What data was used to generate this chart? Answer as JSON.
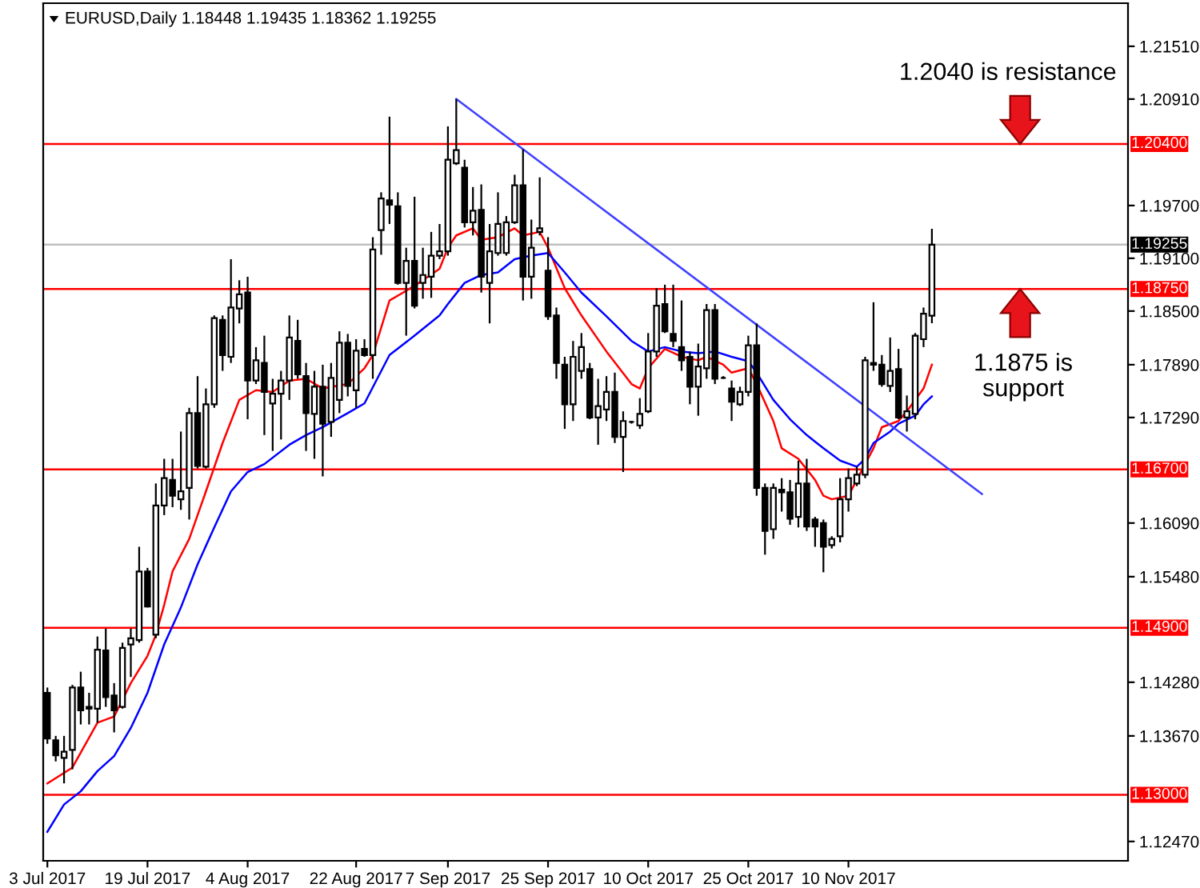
{
  "chart_data": {
    "type": "candlestick",
    "title": "EURUSD,Daily 1.18448 1.19435 1.18362 1.19255",
    "categories": [
      "3 Jul 2017",
      null,
      null,
      null,
      null,
      null,
      null,
      null,
      null,
      null,
      null,
      null,
      "19 Jul 2017",
      null,
      null,
      null,
      null,
      null,
      null,
      null,
      null,
      null,
      null,
      null,
      "4 Aug 2017",
      null,
      null,
      null,
      null,
      null,
      null,
      null,
      null,
      null,
      null,
      null,
      null,
      "22 Aug 2017",
      null,
      null,
      null,
      null,
      null,
      null,
      null,
      null,
      null,
      null,
      "7 Sep 2017",
      null,
      null,
      null,
      null,
      null,
      null,
      null,
      null,
      null,
      null,
      null,
      "25 Sep 2017",
      null,
      null,
      null,
      null,
      null,
      null,
      null,
      null,
      null,
      null,
      null,
      "10 Oct 2017",
      null,
      null,
      null,
      null,
      null,
      null,
      null,
      null,
      null,
      null,
      null,
      "25 Oct 2017",
      null,
      null,
      null,
      null,
      null,
      null,
      null,
      null,
      null,
      null,
      null,
      "10 Nov 2017",
      null,
      null,
      null,
      null,
      null,
      null,
      null,
      null,
      null,
      null,
      null,
      null,
      null,
      null,
      null,
      null,
      null,
      null,
      null,
      null,
      null,
      null,
      null,
      null,
      null,
      null,
      null,
      null,
      null,
      null,
      null,
      null,
      null
    ],
    "ohlc": [
      [
        1.1416,
        1.1422,
        1.1358,
        1.1364
      ],
      [
        1.1362,
        1.1367,
        1.1338,
        1.1345
      ],
      [
        1.1342,
        1.1367,
        1.1313,
        1.1349
      ],
      [
        1.1351,
        1.1425,
        1.1329,
        1.1422
      ],
      [
        1.1422,
        1.144,
        1.138,
        1.1396
      ],
      [
        1.1398,
        1.1416,
        1.138,
        1.14
      ],
      [
        1.1398,
        1.148,
        1.1382,
        1.1465
      ],
      [
        1.1464,
        1.1489,
        1.14,
        1.1411
      ],
      [
        1.1413,
        1.1427,
        1.1371,
        1.1396
      ],
      [
        1.14,
        1.1473,
        1.1398,
        1.1467
      ],
      [
        1.1471,
        1.1489,
        1.1434,
        1.1478
      ],
      [
        1.1476,
        1.1582,
        1.1473,
        1.1554
      ],
      [
        1.1554,
        1.1558,
        1.1513,
        1.1514
      ],
      [
        1.1482,
        1.1654,
        1.1478,
        1.1629
      ],
      [
        1.1629,
        1.1682,
        1.1618,
        1.166
      ],
      [
        1.1658,
        1.1682,
        1.1627,
        1.164
      ],
      [
        1.1636,
        1.1713,
        1.1624,
        1.1645
      ],
      [
        1.1649,
        1.174,
        1.1613,
        1.1734
      ],
      [
        1.1734,
        1.1776,
        1.1671,
        1.1674
      ],
      [
        1.1673,
        1.1762,
        1.1671,
        1.1744
      ],
      [
        1.1744,
        1.1845,
        1.174,
        1.1842
      ],
      [
        1.184,
        1.1845,
        1.1782,
        1.18
      ],
      [
        1.1798,
        1.1909,
        1.1791,
        1.1854
      ],
      [
        1.1853,
        1.1885,
        1.1836,
        1.1869
      ],
      [
        1.1871,
        1.1889,
        1.1727,
        1.1771
      ],
      [
        1.1771,
        1.1809,
        1.1767,
        1.1794
      ],
      [
        1.1791,
        1.1822,
        1.1709,
        1.1758
      ],
      [
        1.1745,
        1.1773,
        1.1691,
        1.1756
      ],
      [
        1.1756,
        1.1782,
        1.1704,
        1.1771
      ],
      [
        1.1771,
        1.1845,
        1.1749,
        1.182
      ],
      [
        1.1816,
        1.184,
        1.1773,
        1.1778
      ],
      [
        1.1776,
        1.1791,
        1.1691,
        1.1734
      ],
      [
        1.1733,
        1.1782,
        1.1682,
        1.1764
      ],
      [
        1.1764,
        1.1789,
        1.1662,
        1.1722
      ],
      [
        1.1724,
        1.1791,
        1.1707,
        1.1774
      ],
      [
        1.1749,
        1.1827,
        1.1734,
        1.1814
      ],
      [
        1.1814,
        1.1824,
        1.1753,
        1.1765
      ],
      [
        1.176,
        1.1818,
        1.174,
        1.1805
      ],
      [
        1.1807,
        1.1818,
        1.1798,
        1.18
      ],
      [
        1.18,
        1.1934,
        1.1773,
        1.192
      ],
      [
        1.1942,
        1.1985,
        1.1914,
        1.1978
      ],
      [
        1.1976,
        1.2071,
        1.1949,
        1.1971
      ],
      [
        1.1969,
        1.1985,
        1.188,
        1.1882
      ],
      [
        1.1882,
        1.1922,
        1.1822,
        1.1907
      ],
      [
        1.1907,
        1.198,
        1.1853,
        1.1856
      ],
      [
        1.1882,
        1.1922,
        1.1864,
        1.1891
      ],
      [
        1.1889,
        1.194,
        1.1865,
        1.1913
      ],
      [
        1.1913,
        1.1949,
        1.1909,
        1.1918
      ],
      [
        1.1918,
        1.206,
        1.1913,
        1.2022
      ],
      [
        1.2018,
        1.2091,
        1.2016,
        1.2033
      ],
      [
        1.2013,
        1.2022,
        1.1945,
        1.1951
      ],
      [
        1.1951,
        1.1991,
        1.1936,
        1.1964
      ],
      [
        1.1965,
        1.1994,
        1.1871,
        1.1889
      ],
      [
        1.1882,
        1.1949,
        1.1836,
        1.1918
      ],
      [
        1.1916,
        1.1985,
        1.1913,
        1.1949
      ],
      [
        1.1916,
        1.1958,
        1.1913,
        1.1951
      ],
      [
        1.1951,
        1.2005,
        1.1949,
        1.1993
      ],
      [
        1.1993,
        1.2034,
        1.1862,
        1.1889
      ],
      [
        1.1889,
        1.1954,
        1.1864,
        1.1922
      ],
      [
        1.194,
        1.2002,
        1.1936,
        1.1944
      ],
      [
        1.1896,
        1.1934,
        1.184,
        1.1844
      ],
      [
        1.1845,
        1.1854,
        1.1773,
        1.1791
      ],
      [
        1.1789,
        1.1798,
        1.1716,
        1.1744
      ],
      [
        1.1744,
        1.1816,
        1.1725,
        1.1798
      ],
      [
        1.1782,
        1.1825,
        1.1773,
        1.1809
      ],
      [
        1.1784,
        1.1791,
        1.1727,
        1.1729
      ],
      [
        1.1729,
        1.1773,
        1.1698,
        1.1742
      ],
      [
        1.1738,
        1.1776,
        1.1725,
        1.1758
      ],
      [
        1.1758,
        1.178,
        1.17,
        1.1707
      ],
      [
        1.1707,
        1.1736,
        1.1667,
        1.1725
      ],
      [
        1.1724,
        1.1725,
        1.1722,
        1.1724
      ],
      [
        1.172,
        1.1751,
        1.1716,
        1.1733
      ],
      [
        1.1736,
        1.1825,
        1.1734,
        1.1804
      ],
      [
        1.1804,
        1.1876,
        1.1798,
        1.1856
      ],
      [
        1.1858,
        1.188,
        1.1825,
        1.1827
      ],
      [
        1.1824,
        1.188,
        1.1809,
        1.1816
      ],
      [
        1.1809,
        1.1862,
        1.1782,
        1.1794
      ],
      [
        1.1798,
        1.1804,
        1.1744,
        1.1764
      ],
      [
        1.1764,
        1.1813,
        1.1731,
        1.1787
      ],
      [
        1.1785,
        1.1858,
        1.1773,
        1.1851
      ],
      [
        1.1851,
        1.1858,
        1.1767,
        1.1773
      ],
      [
        1.1774,
        1.1776,
        1.1773,
        1.1774
      ],
      [
        1.1762,
        1.1771,
        1.1725,
        1.1747
      ],
      [
        1.1744,
        1.1764,
        1.1742,
        1.1758
      ],
      [
        1.1758,
        1.1822,
        1.1753,
        1.1811
      ],
      [
        1.1811,
        1.1836,
        1.164,
        1.1649
      ],
      [
        1.1649,
        1.1654,
        1.1573,
        1.16
      ],
      [
        1.1602,
        1.1654,
        1.1591,
        1.1649
      ],
      [
        1.1647,
        1.166,
        1.1622,
        1.1644
      ],
      [
        1.1644,
        1.1658,
        1.1607,
        1.1614
      ],
      [
        1.1616,
        1.168,
        1.1604,
        1.1654
      ],
      [
        1.1654,
        1.1682,
        1.16,
        1.1605
      ],
      [
        1.1613,
        1.1616,
        1.1582,
        1.1605
      ],
      [
        1.1609,
        1.1613,
        1.1553,
        1.1582
      ],
      [
        1.1584,
        1.1594,
        1.158,
        1.1591
      ],
      [
        1.1594,
        1.166,
        1.1587,
        1.1636
      ],
      [
        1.1636,
        1.1671,
        1.1622,
        1.166
      ],
      [
        1.1654,
        1.1673,
        1.1651,
        1.1664
      ],
      [
        1.1664,
        1.1798,
        1.166,
        1.1794
      ],
      [
        1.1789,
        1.186,
        1.1782,
        1.1791
      ],
      [
        1.1789,
        1.18,
        1.1764,
        1.1767
      ],
      [
        1.1765,
        1.182,
        1.1758,
        1.1782
      ],
      [
        1.1784,
        1.1807,
        1.1727,
        1.1729
      ],
      [
        1.1729,
        1.1754,
        1.1713,
        1.1736
      ],
      [
        1.1733,
        1.1825,
        1.1727,
        1.1822
      ],
      [
        1.1818,
        1.1854,
        1.1809,
        1.1847
      ],
      [
        1.18448,
        1.19435,
        1.18362,
        1.19255
      ],
      null,
      null,
      null,
      null,
      null,
      null,
      null,
      null,
      null,
      null,
      null,
      null,
      null,
      null,
      null,
      null,
      null,
      null,
      null,
      null,
      null,
      null,
      null
    ],
    "series": [
      {
        "type": "line",
        "color": "#ff0000",
        "values": [
          1.1313,
          null,
          null,
          1.1331,
          null,
          null,
          1.1382,
          null,
          1.1389,
          null,
          1.1427,
          null,
          1.1458,
          1.1482,
          1.1516,
          1.1554,
          null,
          1.1591,
          null,
          1.1645,
          null,
          1.17,
          null,
          1.1749,
          null,
          1.176,
          null,
          1.1758,
          null,
          1.1771,
          null,
          1.1773,
          null,
          1.1762,
          null,
          null,
          1.1767,
          null,
          1.1785,
          1.18,
          null,
          1.1862,
          null,
          1.1873,
          null,
          1.1885,
          null,
          1.1898,
          1.1922,
          1.1936,
          null,
          1.1944,
          1.1931,
          null,
          1.1934,
          null,
          1.1944,
          1.1936,
          null,
          1.194,
          1.1922,
          null,
          1.1876,
          null,
          1.1845,
          null,
          null,
          1.1804,
          null,
          null,
          1.1767,
          1.1762,
          1.1785,
          null,
          1.1807,
          null,
          1.1798,
          null,
          1.1794,
          1.1798,
          null,
          1.1789,
          1.178,
          null,
          1.1785,
          1.1767,
          null,
          1.1725,
          1.1694,
          null,
          1.1682,
          null,
          1.1658,
          1.164,
          1.1636,
          null,
          1.164,
          1.1658,
          null,
          1.1694,
          1.1718,
          null,
          1.1725,
          1.1736,
          null,
          1.1762,
          1.1789,
          null,
          null,
          null,
          null,
          null,
          null,
          null,
          null,
          null,
          null,
          null,
          null,
          null,
          null,
          null,
          null,
          null,
          null,
          null,
          null,
          null,
          null,
          null
        ]
      },
      {
        "type": "line",
        "color": "#0000ff",
        "values": [
          1.1258,
          null,
          1.1289,
          null,
          1.1304,
          null,
          1.1327,
          null,
          1.1344,
          null,
          1.1376,
          null,
          1.1416,
          null,
          1.1471,
          null,
          1.1513,
          null,
          1.1562,
          null,
          1.1604,
          null,
          1.1645,
          null,
          1.1667,
          null,
          1.1676,
          null,
          null,
          1.1698,
          null,
          1.1709,
          null,
          1.1718,
          null,
          null,
          1.1734,
          null,
          1.1745,
          null,
          null,
          1.18,
          null,
          null,
          1.1822,
          null,
          null,
          1.1845,
          1.1858,
          null,
          1.1882,
          null,
          1.1891,
          null,
          1.1894,
          null,
          1.1909,
          null,
          1.1913,
          null,
          1.1916,
          null,
          1.1894,
          null,
          1.1871,
          null,
          null,
          1.1844,
          null,
          null,
          1.1816,
          null,
          1.1804,
          null,
          1.1809,
          null,
          1.1804,
          null,
          1.1802,
          null,
          1.1804,
          null,
          1.1798,
          null,
          1.1793,
          1.178,
          null,
          1.1749,
          null,
          1.1727,
          null,
          1.1709,
          null,
          1.1694,
          null,
          1.168,
          null,
          1.1673,
          1.1682,
          1.17,
          null,
          1.1713,
          1.1722,
          null,
          1.1731,
          1.1744,
          1.1753,
          null,
          null,
          null,
          null,
          null,
          null,
          null,
          null,
          null,
          null,
          null,
          null,
          null,
          null,
          null,
          null,
          null,
          null,
          null,
          null,
          null,
          null,
          null
        ]
      },
      {
        "type": "line",
        "color": "#3f3fff",
        "values": [
          null,
          null,
          null,
          null,
          null,
          null,
          null,
          null,
          null,
          null,
          null,
          null,
          null,
          null,
          null,
          null,
          null,
          null,
          null,
          null,
          null,
          null,
          null,
          null,
          null,
          null,
          null,
          null,
          null,
          null,
          null,
          null,
          null,
          null,
          null,
          null,
          null,
          null,
          null,
          null,
          null,
          null,
          null,
          null,
          null,
          null,
          null,
          null,
          null,
          1.2091,
          null,
          null,
          null,
          null,
          null,
          null,
          null,
          null,
          null,
          null,
          null,
          null,
          null,
          null,
          null,
          null,
          null,
          null,
          null,
          null,
          null,
          null,
          null,
          null,
          null,
          null,
          null,
          null,
          null,
          null,
          null,
          null,
          null,
          null,
          null,
          null,
          null,
          null,
          null,
          null,
          null,
          null,
          null,
          null,
          null,
          null,
          null,
          null,
          null,
          null,
          null,
          null,
          null,
          null,
          null,
          null,
          null,
          null,
          null,
          null,
          null,
          null,
          1.1642,
          null,
          null,
          null,
          null,
          null,
          null,
          null,
          null,
          null,
          null,
          null,
          null,
          null,
          null,
          null,
          null,
          null
        ]
      }
    ],
    "ylim": [
      1.1225,
      1.22
    ],
    "yticks": [
      {
        "value": 1.2151,
        "label": "1.21510"
      },
      {
        "value": 1.2091,
        "label": "1.20910"
      },
      {
        "value": 1.197,
        "label": "1.19700"
      },
      {
        "value": 1.191,
        "label": "1.19100"
      },
      {
        "value": 1.185,
        "label": "1.18500"
      },
      {
        "value": 1.1789,
        "label": "1.17890"
      },
      {
        "value": 1.1729,
        "label": "1.17290"
      },
      {
        "value": 1.1609,
        "label": "1.16090"
      },
      {
        "value": 1.1548,
        "label": "1.15480"
      },
      {
        "value": 1.1428,
        "label": "1.14280"
      },
      {
        "value": 1.1367,
        "label": "1.13670"
      },
      {
        "value": 1.1247,
        "label": "1.12470"
      }
    ],
    "ref_lines": [
      {
        "axis": "y",
        "value": 1.204,
        "label": "1.20400",
        "color": "#ff0000"
      },
      {
        "axis": "y",
        "value": 1.19255,
        "label": "1.19255",
        "color": "#c0c0c0"
      },
      {
        "axis": "y",
        "value": 1.1875,
        "label": "1.18750",
        "color": "#ff0000"
      },
      {
        "axis": "y",
        "value": 1.167,
        "label": "1.16700",
        "color": "#ff0000"
      },
      {
        "axis": "y",
        "value": 1.149,
        "label": "1.14900",
        "color": "#ff0000"
      },
      {
        "axis": "y",
        "value": 1.13,
        "label": "1.13000",
        "color": "#ff0000"
      }
    ],
    "annotations": [
      {
        "text": "1.2040 is resistance",
        "y": 1.204
      },
      {
        "text": "1.1875 is\nsupport",
        "y": 1.1875
      }
    ],
    "grid": false,
    "legend": false
  }
}
